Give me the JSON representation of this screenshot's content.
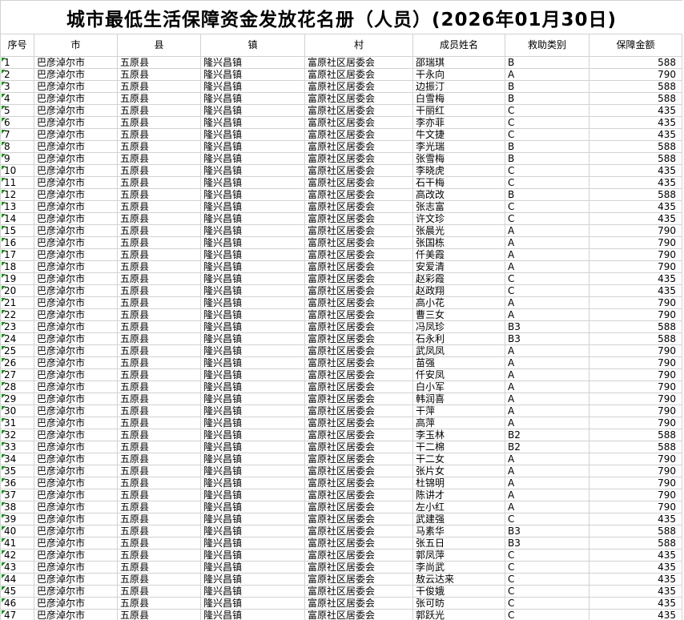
{
  "title": "城市最低生活保障资金发放花名册（人员）(2026年01月30日)",
  "columns": [
    "序号",
    "市",
    "县",
    "镇",
    "村",
    "成员姓名",
    "救助类别",
    "保障金额"
  ],
  "location": {
    "city": "巴彦淖尔市",
    "county": "五原县",
    "town": "隆兴昌镇",
    "village": "富原社区居委会"
  },
  "indicator": {
    "name": "number-stored-as-text-triangle",
    "color": "#0a8f0a"
  },
  "colors": {
    "gridline": "#d2d2d2",
    "background": "#ffffff",
    "text": "#000000"
  },
  "rows": [
    {
      "seq": "1",
      "name": "邵瑞琪",
      "category": "B",
      "amount": "588"
    },
    {
      "seq": "2",
      "name": "干永向",
      "category": "A",
      "amount": "790"
    },
    {
      "seq": "3",
      "name": "边振汀",
      "category": "B",
      "amount": "588"
    },
    {
      "seq": "4",
      "name": "白雪梅",
      "category": "B",
      "amount": "588"
    },
    {
      "seq": "5",
      "name": "干丽红",
      "category": "C",
      "amount": "435"
    },
    {
      "seq": "6",
      "name": "李亦菲",
      "category": "C",
      "amount": "435"
    },
    {
      "seq": "7",
      "name": "牛文捷",
      "category": "C",
      "amount": "435"
    },
    {
      "seq": "8",
      "name": "李光瑞",
      "category": "B",
      "amount": "588"
    },
    {
      "seq": "9",
      "name": "张雪梅",
      "category": "B",
      "amount": "588"
    },
    {
      "seq": "10",
      "name": "李晓虎",
      "category": "C",
      "amount": "435"
    },
    {
      "seq": "11",
      "name": "石干梅",
      "category": "C",
      "amount": "435"
    },
    {
      "seq": "12",
      "name": "高改改",
      "category": "B",
      "amount": "588"
    },
    {
      "seq": "13",
      "name": "张志富",
      "category": "C",
      "amount": "435"
    },
    {
      "seq": "14",
      "name": "许文珍",
      "category": "C",
      "amount": "435"
    },
    {
      "seq": "15",
      "name": "张晨光",
      "category": "A",
      "amount": "790"
    },
    {
      "seq": "16",
      "name": "张国栋",
      "category": "A",
      "amount": "790"
    },
    {
      "seq": "17",
      "name": "仟美霞",
      "category": "A",
      "amount": "790"
    },
    {
      "seq": "18",
      "name": "安爱清",
      "category": "A",
      "amount": "790"
    },
    {
      "seq": "19",
      "name": "赵彩霞",
      "category": "C",
      "amount": "435"
    },
    {
      "seq": "20",
      "name": "赵政翔",
      "category": "C",
      "amount": "435"
    },
    {
      "seq": "21",
      "name": "高小花",
      "category": "A",
      "amount": "790"
    },
    {
      "seq": "22",
      "name": "曹三女",
      "category": "A",
      "amount": "790"
    },
    {
      "seq": "23",
      "name": "冯凤珍",
      "category": "B3",
      "amount": "588"
    },
    {
      "seq": "24",
      "name": "石永利",
      "category": "B3",
      "amount": "588"
    },
    {
      "seq": "25",
      "name": "武凤凤",
      "category": "A",
      "amount": "790"
    },
    {
      "seq": "26",
      "name": "苗强",
      "category": "A",
      "amount": "790"
    },
    {
      "seq": "27",
      "name": "仟安凤",
      "category": "A",
      "amount": "790"
    },
    {
      "seq": "28",
      "name": "白小军",
      "category": "A",
      "amount": "790"
    },
    {
      "seq": "29",
      "name": "韩润喜",
      "category": "A",
      "amount": "790"
    },
    {
      "seq": "30",
      "name": "干萍",
      "category": "A",
      "amount": "790"
    },
    {
      "seq": "31",
      "name": "高萍",
      "category": "A",
      "amount": "790"
    },
    {
      "seq": "32",
      "name": "李玉林",
      "category": "B2",
      "amount": "588"
    },
    {
      "seq": "33",
      "name": "干二棉",
      "category": "B2",
      "amount": "588"
    },
    {
      "seq": "34",
      "name": "干二女",
      "category": "A",
      "amount": "790"
    },
    {
      "seq": "35",
      "name": "张片女",
      "category": "A",
      "amount": "790"
    },
    {
      "seq": "36",
      "name": "杜锦明",
      "category": "A",
      "amount": "790"
    },
    {
      "seq": "37",
      "name": "陈讲才",
      "category": "A",
      "amount": "790"
    },
    {
      "seq": "38",
      "name": "左小红",
      "category": "A",
      "amount": "790"
    },
    {
      "seq": "39",
      "name": "武建强",
      "category": "C",
      "amount": "435"
    },
    {
      "seq": "40",
      "name": "马素华",
      "category": "B3",
      "amount": "588"
    },
    {
      "seq": "41",
      "name": "张五日",
      "category": "B3",
      "amount": "588"
    },
    {
      "seq": "42",
      "name": "郭凤萍",
      "category": "C",
      "amount": "435"
    },
    {
      "seq": "43",
      "name": "李尚武",
      "category": "C",
      "amount": "435"
    },
    {
      "seq": "44",
      "name": "敖云达来",
      "category": "C",
      "amount": "435"
    },
    {
      "seq": "45",
      "name": "干俊娥",
      "category": "C",
      "amount": "435"
    },
    {
      "seq": "46",
      "name": "张可昉",
      "category": "C",
      "amount": "435"
    },
    {
      "seq": "47",
      "name": "郭跃光",
      "category": "C",
      "amount": "435"
    }
  ]
}
